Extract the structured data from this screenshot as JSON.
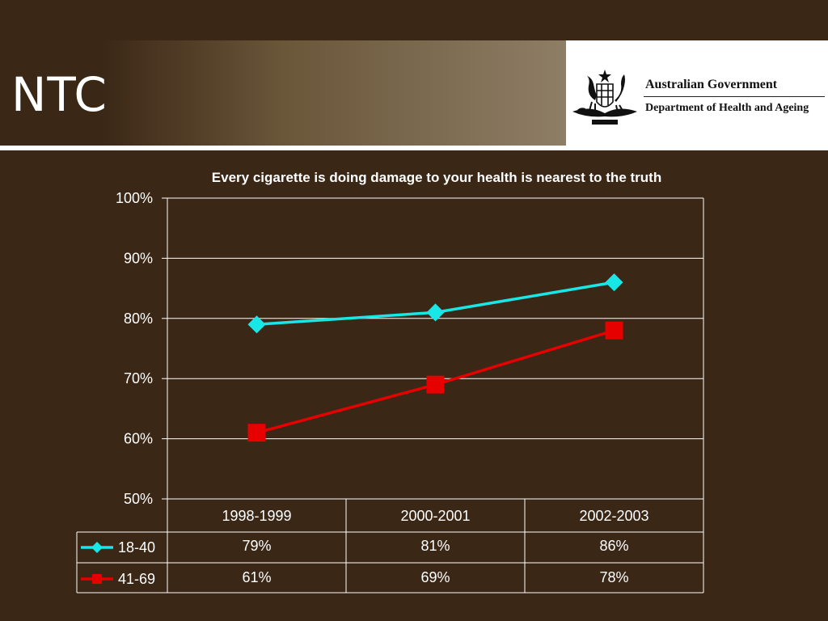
{
  "slide": {
    "title": "NTC"
  },
  "logo": {
    "government": "Australian Government",
    "department": "Department of Health and Ageing"
  },
  "colors": {
    "background": "#3b2716",
    "series_18_40": "#19e6e6",
    "series_41_69": "#e60000",
    "grid": "#ffffff"
  },
  "chart_data": {
    "type": "line",
    "title": "Every cigarette is doing damage to your health is nearest to the truth",
    "categories": [
      "1998-1999",
      "2000-2001",
      "2002-2003"
    ],
    "ylim": [
      50,
      100
    ],
    "yticks": [
      "50%",
      "60%",
      "70%",
      "80%",
      "90%",
      "100%"
    ],
    "ytick_values": [
      50,
      60,
      70,
      80,
      90,
      100
    ],
    "grid": true,
    "legend": "bottom-left data table",
    "series": [
      {
        "name": "18-40",
        "values": [
          79,
          81,
          86
        ],
        "labels": [
          "79%",
          "81%",
          "86%"
        ],
        "color": "#19e6e6",
        "marker": "diamond"
      },
      {
        "name": "41-69",
        "values": [
          61,
          69,
          78
        ],
        "labels": [
          "61%",
          "69%",
          "78%"
        ],
        "color": "#e60000",
        "marker": "square"
      }
    ]
  }
}
